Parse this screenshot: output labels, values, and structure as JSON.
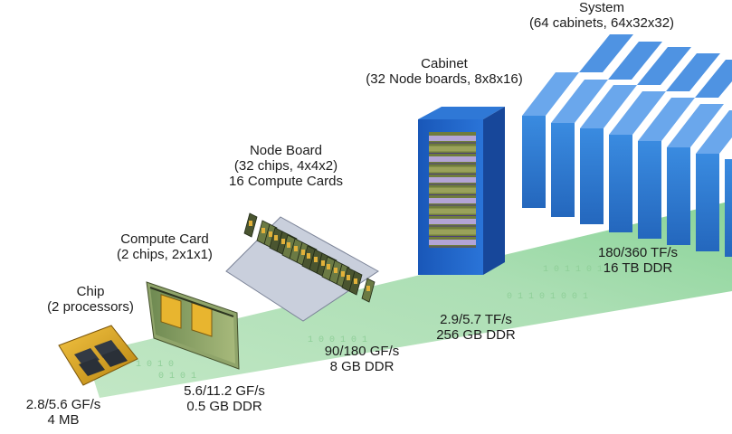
{
  "stages": [
    {
      "id": "chip",
      "title": "Chip",
      "subtitle": "(2 processors)",
      "perf": "2.8/5.6 GF/s",
      "memory": "4 MB"
    },
    {
      "id": "compute-card",
      "title": "Compute Card",
      "subtitle": "(2 chips, 2x1x1)",
      "perf": "5.6/11.2 GF/s",
      "memory": "0.5 GB DDR"
    },
    {
      "id": "node-board",
      "title": "Node Board",
      "subtitle": "(32 chips, 4x4x2)",
      "extra": "16 Compute Cards",
      "perf": "90/180 GF/s",
      "memory": "8 GB DDR"
    },
    {
      "id": "cabinet",
      "title": "Cabinet",
      "subtitle": "(32 Node boards, 8x8x16)",
      "perf": "2.9/5.7 TF/s",
      "memory": "256 GB DDR"
    },
    {
      "id": "system",
      "title": "System",
      "subtitle": "(64 cabinets, 64x32x32)",
      "perf": "180/360 TF/s",
      "memory": "16 TB DDR"
    }
  ],
  "colors": {
    "beam": "#a9ddb0",
    "cabinet_blue": "#1f64c8",
    "system_blue": "#2f7fd6",
    "chip_gold": "#d9a520",
    "board_silver": "#b8bfd0"
  }
}
